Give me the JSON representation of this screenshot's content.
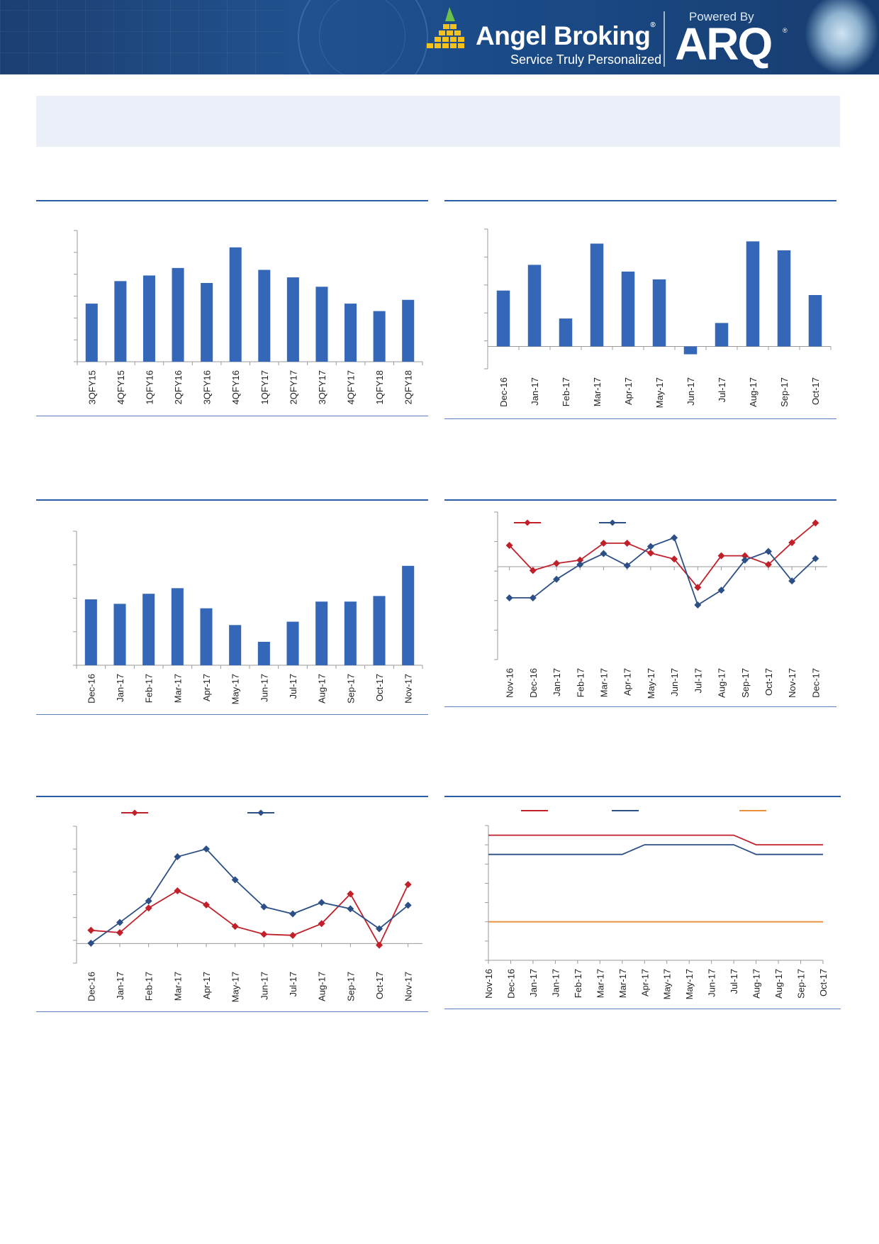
{
  "header": {
    "brand_name": "Angel Broking",
    "brand_tagline": "Service Truly Personalized",
    "powered_by": "Powered By",
    "partner_logo": "ARQ",
    "registered_mark": "®"
  },
  "colors": {
    "bar_blue": "#3467b8",
    "series_red": "#c0202a",
    "series_navy": "#2c4f86",
    "series_orange": "#ea8e3a",
    "rule_blue": "#2a5ba6"
  },
  "chart_data": [
    {
      "id": "chart1",
      "type": "bar",
      "categories": [
        "3QFY15",
        "4QFY15",
        "1QFY16",
        "2QFY16",
        "3QFY16",
        "4QFY16",
        "1QFY17",
        "2QFY17",
        "3QFY17",
        "4QFY17",
        "1QFY18",
        "2QFY18"
      ],
      "values": [
        6.2,
        8.6,
        9.2,
        10.0,
        8.4,
        12.2,
        9.8,
        9.0,
        8.0,
        6.2,
        5.4,
        6.6
      ],
      "ylim": [
        0,
        14
      ],
      "yticks": 7,
      "grid": false,
      "legend": "none"
    },
    {
      "id": "chart2",
      "type": "bar",
      "categories": [
        "Dec-16",
        "Jan-17",
        "Feb-17",
        "Mar-17",
        "Apr-17",
        "May-17",
        "Jun-17",
        "Jul-17",
        "Aug-17",
        "Sep-17",
        "Oct-17"
      ],
      "values": [
        5.0,
        7.3,
        2.5,
        9.2,
        6.7,
        6.0,
        -0.7,
        2.1,
        9.4,
        8.6,
        4.6
      ],
      "ylim": [
        -2,
        10.5
      ],
      "yticks": 6,
      "grid": false,
      "legend": "none"
    },
    {
      "id": "chart3",
      "type": "bar",
      "categories": [
        "Dec-16",
        "Jan-17",
        "Feb-17",
        "Mar-17",
        "Apr-17",
        "May-17",
        "Jun-17",
        "Jul-17",
        "Aug-17",
        "Sep-17",
        "Oct-17",
        "Nov-17"
      ],
      "values": [
        51.9,
        51.5,
        52.4,
        52.9,
        51.1,
        49.6,
        48.1,
        49.9,
        51.7,
        51.7,
        52.2,
        54.9
      ],
      "ylim": [
        46,
        58
      ],
      "yticks": 5,
      "grid": false,
      "legend": "none"
    },
    {
      "id": "chart4",
      "type": "line",
      "categories": [
        "Nov-16",
        "Dec-16",
        "Jan-17",
        "Feb-17",
        "Mar-17",
        "Apr-17",
        "May-17",
        "Jun-17",
        "Jul-17",
        "Aug-17",
        "Sep-17",
        "Oct-17",
        "Nov-17",
        "Dec-17"
      ],
      "series": [
        {
          "values": [
            3.9,
            -0.7,
            0.6,
            1.2,
            4.3,
            4.3,
            2.5,
            1.4,
            -3.8,
            2.0,
            2.0,
            0.4,
            4.4,
            8.0
          ]
        },
        {
          "values": [
            -5.7,
            -5.7,
            -2.3,
            0.4,
            2.4,
            0.2,
            3.7,
            5.3,
            -7.0,
            -4.3,
            1.2,
            2.8,
            -2.6,
            1.5
          ]
        }
      ],
      "ylim": [
        -17,
        10
      ],
      "yticks": 6,
      "grid": false,
      "legend": "top"
    },
    {
      "id": "chart5",
      "type": "line",
      "categories": [
        "Dec-16",
        "Jan-17",
        "Feb-17",
        "Mar-17",
        "Apr-17",
        "May-17",
        "Jun-17",
        "Jul-17",
        "Aug-17",
        "Sep-17",
        "Oct-17",
        "Nov-17"
      ],
      "series": [
        {
          "values": [
            3.4,
            2.8,
            9.1,
            13.5,
            9.9,
            4.4,
            2.4,
            2.1,
            5.1,
            12.7,
            -0.4,
            15.1
          ]
        },
        {
          "values": [
            0.1,
            5.4,
            10.9,
            22.2,
            24.2,
            16.3,
            9.4,
            7.6,
            10.5,
            8.9,
            3.8,
            9.8
          ]
        }
      ],
      "ylim": [
        -5,
        30
      ],
      "yticks": 7,
      "grid": false,
      "legend": "top"
    },
    {
      "id": "chart6",
      "type": "line",
      "step": true,
      "categories": [
        "Nov-16",
        "Dec-16",
        "Jan-17",
        "Jan-17",
        "Feb-17",
        "Mar-17",
        "Mar-17",
        "Apr-17",
        "May-17",
        "May-17",
        "Jun-17",
        "Jul-17",
        "Aug-17",
        "Aug-17",
        "Sep-17",
        "Oct-17"
      ],
      "series": [
        {
          "values": [
            6.25,
            6.25,
            6.25,
            6.25,
            6.25,
            6.25,
            6.25,
            6.25,
            6.25,
            6.25,
            6.25,
            6.25,
            6.0,
            6.0,
            6.0,
            6.0
          ]
        },
        {
          "values": [
            5.75,
            5.75,
            5.75,
            5.75,
            5.75,
            5.75,
            5.75,
            6.0,
            6.0,
            6.0,
            6.0,
            6.0,
            5.75,
            5.75,
            5.75,
            5.75
          ]
        },
        {
          "values": [
            4.0,
            4.0,
            4.0,
            4.0,
            4.0,
            4.0,
            4.0,
            4.0,
            4.0,
            4.0,
            4.0,
            4.0,
            4.0,
            4.0,
            4.0,
            4.0
          ]
        }
      ],
      "ylim": [
        3,
        6.5
      ],
      "yticks": 8,
      "grid": false,
      "legend": "top"
    }
  ]
}
